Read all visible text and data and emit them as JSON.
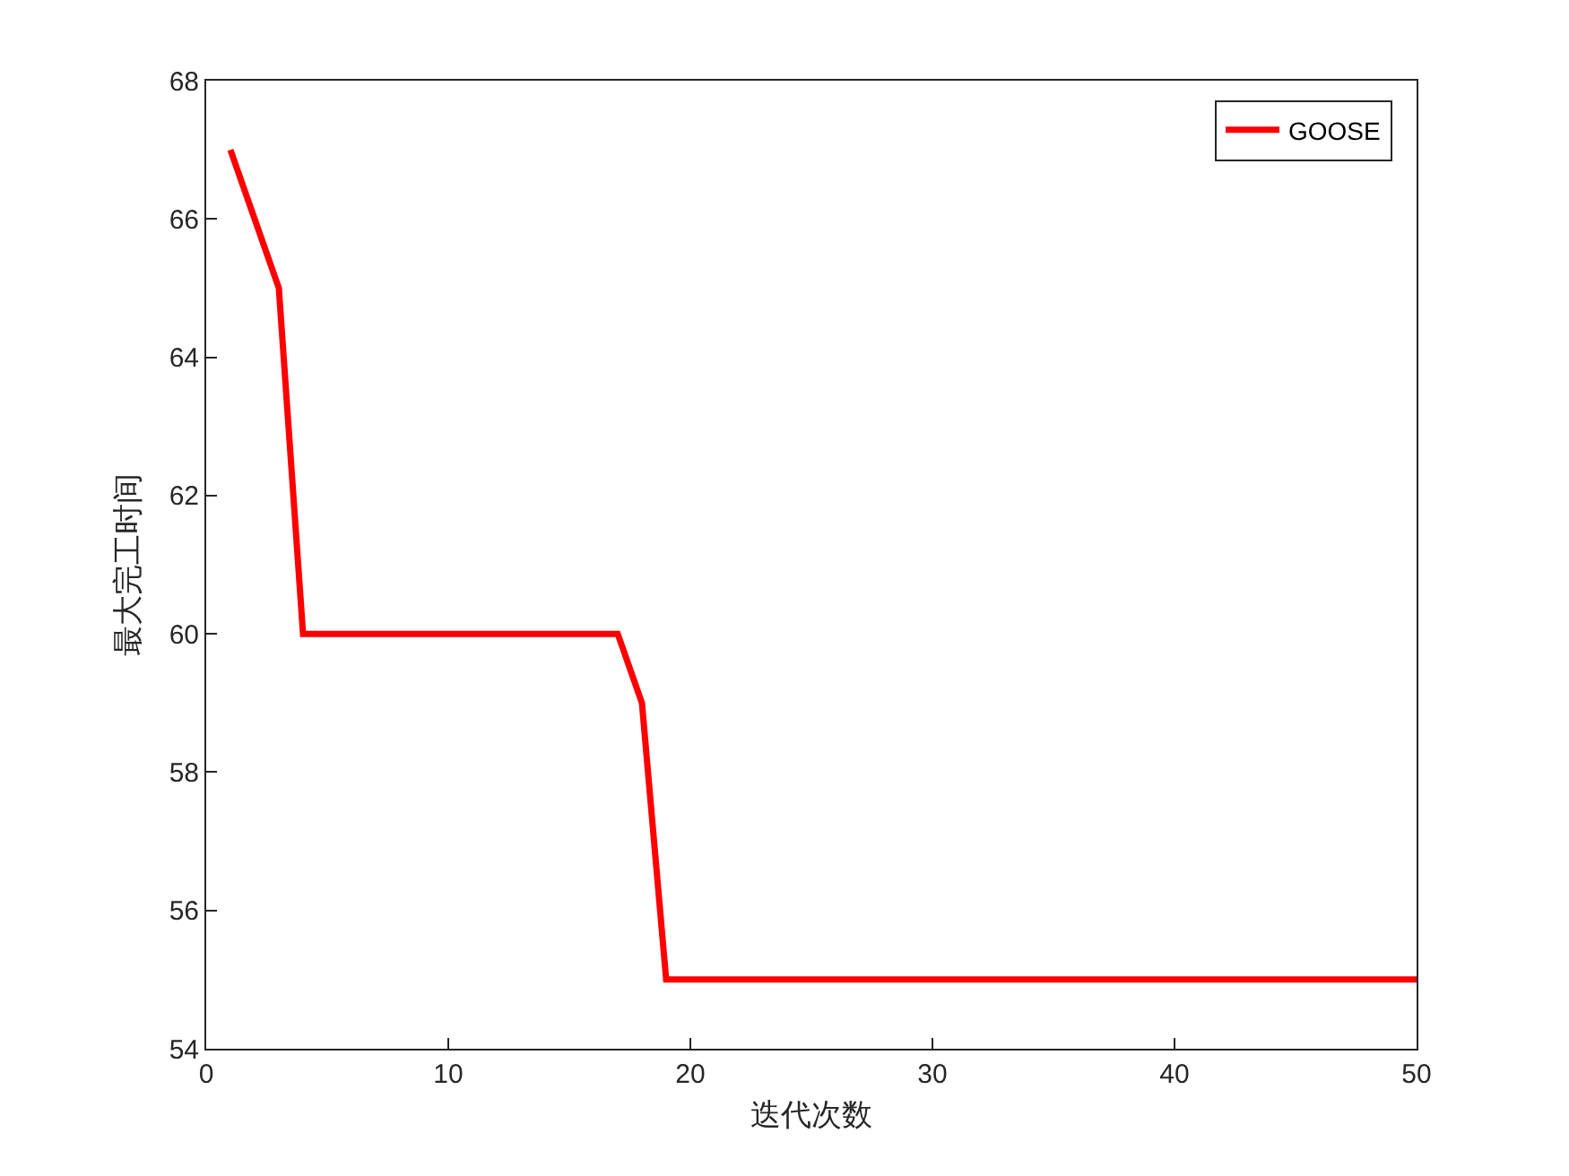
{
  "chart_data": {
    "type": "line",
    "xlabel": "迭代次数",
    "ylabel": "最大完工时间",
    "x": [
      1,
      3,
      4,
      17,
      18,
      19,
      50
    ],
    "series": [
      {
        "name": "GOOSE",
        "color": "#ff0000",
        "values": [
          67,
          65,
          60,
          60,
          59,
          55,
          55
        ]
      }
    ],
    "xlim": [
      0,
      50
    ],
    "xticks": [
      0,
      10,
      20,
      30,
      40,
      50
    ],
    "ylim": [
      54,
      68
    ],
    "yticks": [
      54,
      56,
      58,
      60,
      62,
      64,
      66,
      68
    ],
    "grid": false,
    "legend": "top right",
    "marker": "none",
    "line_style": "solid"
  }
}
